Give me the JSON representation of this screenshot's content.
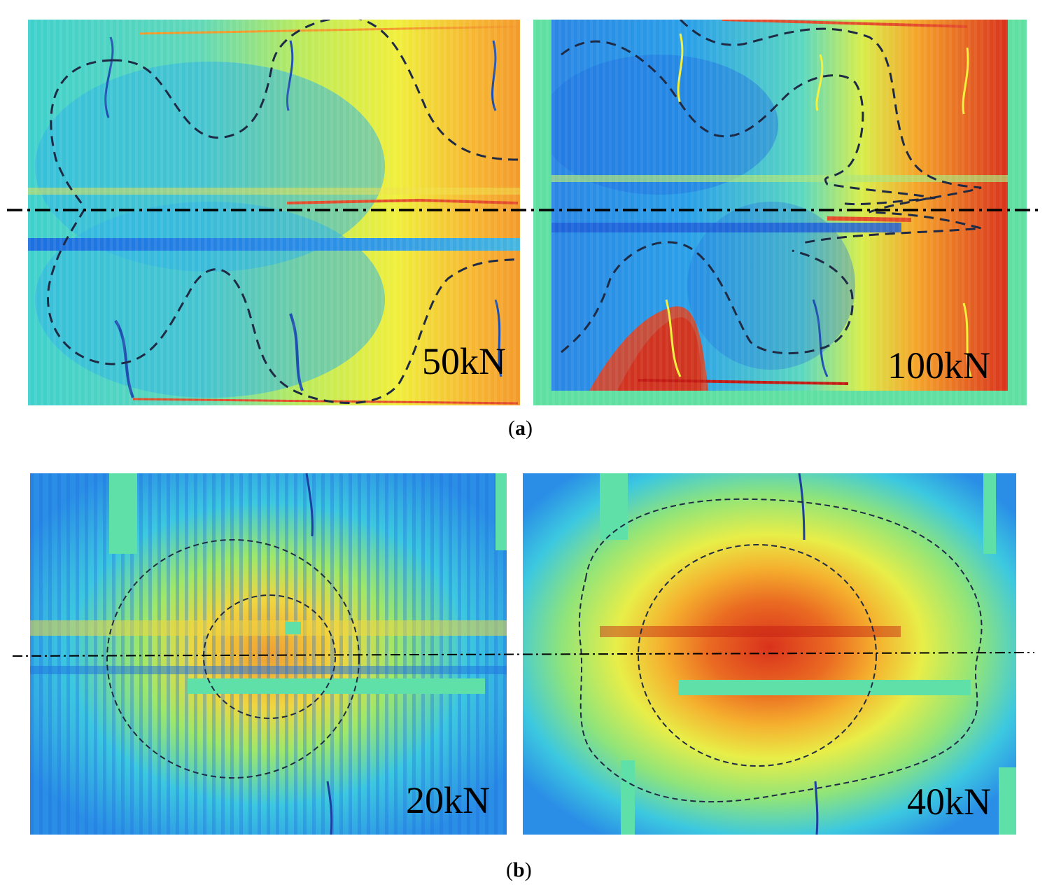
{
  "figure": {
    "row_a": {
      "caption_letter": "a",
      "panels": [
        {
          "load_label": "50kN"
        },
        {
          "load_label": "100kN"
        }
      ]
    },
    "row_b": {
      "caption_letter": "b",
      "panels": [
        {
          "load_label": "20kN"
        },
        {
          "load_label": "40kN"
        }
      ]
    },
    "colors": {
      "contour_line": "#1f2a44",
      "centerline": "#000000",
      "colormap": [
        "#1560e0",
        "#28a8e8",
        "#3cd6c8",
        "#9be86a",
        "#f2f03a",
        "#f7a52a",
        "#e3381e",
        "#c21a12"
      ]
    }
  }
}
